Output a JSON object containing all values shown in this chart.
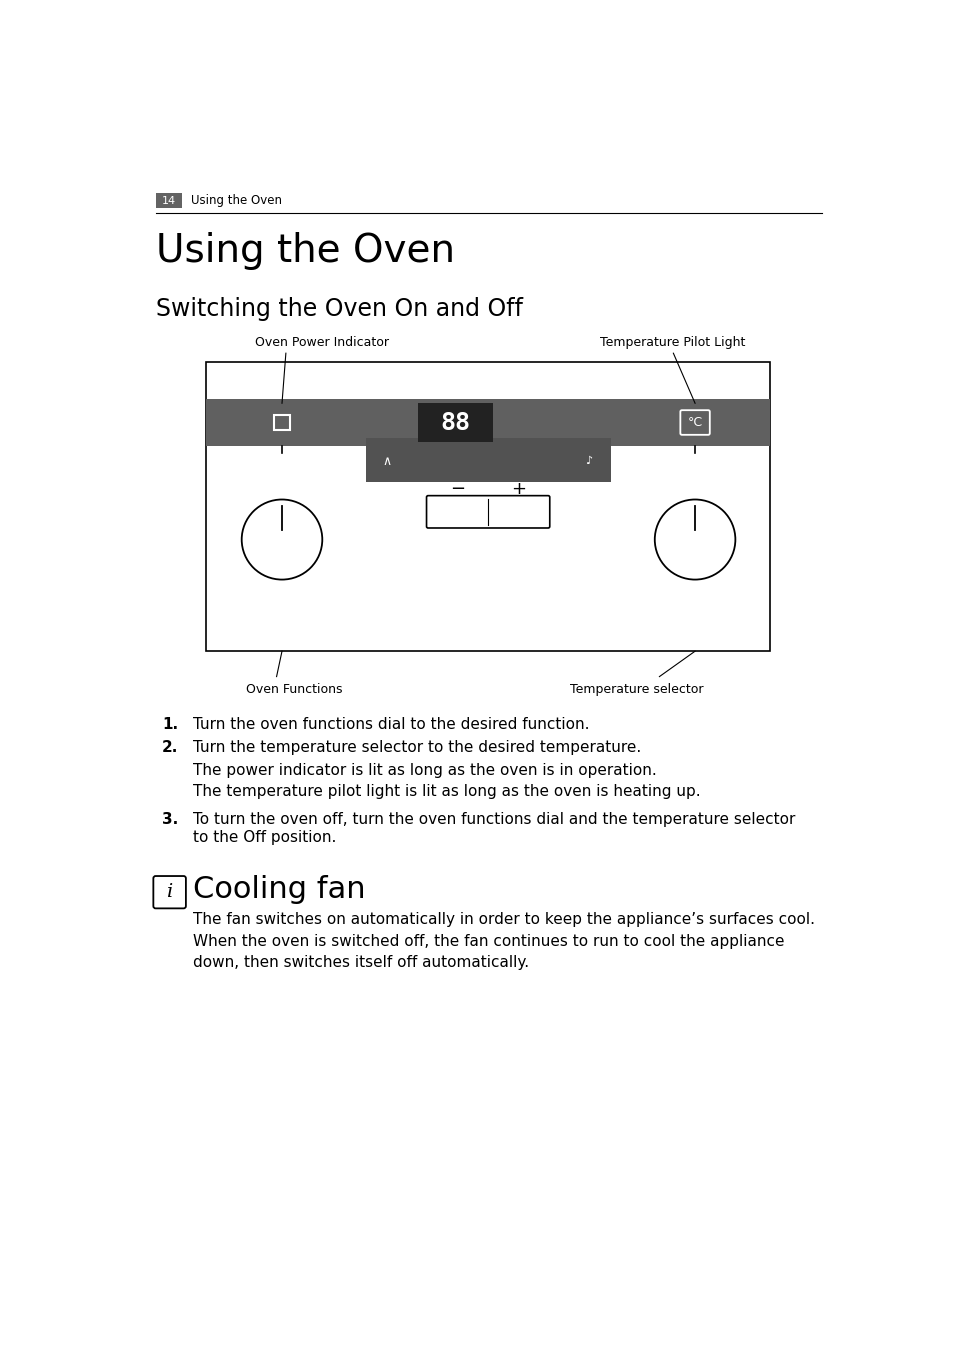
{
  "page_number": "14",
  "page_header": "Using the Oven",
  "main_title": "Using the Oven",
  "section_title": "Switching the Oven On and Off",
  "label_oven_power": "Oven Power Indicator",
  "label_temp_pilot": "Temperature Pilot Light",
  "label_oven_functions": "Oven Functions",
  "label_temp_selector": "Temperature selector",
  "display_text": "88",
  "step1": "Turn the oven functions dial to the desired function.",
  "step2": "Turn the temperature selector to the desired temperature.",
  "step2_sub1": "The power indicator is lit as long as the oven is in operation.",
  "step2_sub2": "The temperature pilot light is lit as long as the oven is heating up.",
  "step3": "To turn the oven off, turn the oven functions dial and the temperature selector\nto the Off position.",
  "cooling_title": "Cooling fan",
  "cooling_text": "The fan switches on automatically in order to keep the appliance’s surfaces cool.\nWhen the oven is switched off, the fan continues to run to cool the appliance\ndown, then switches itself off automatically.",
  "bg_color": "#ffffff",
  "header_bg": "#636363",
  "panel_bg": "#606060",
  "display_bg": "#222222",
  "display_color": "#ffffff",
  "border_color": "#000000",
  "text_color": "#000000"
}
